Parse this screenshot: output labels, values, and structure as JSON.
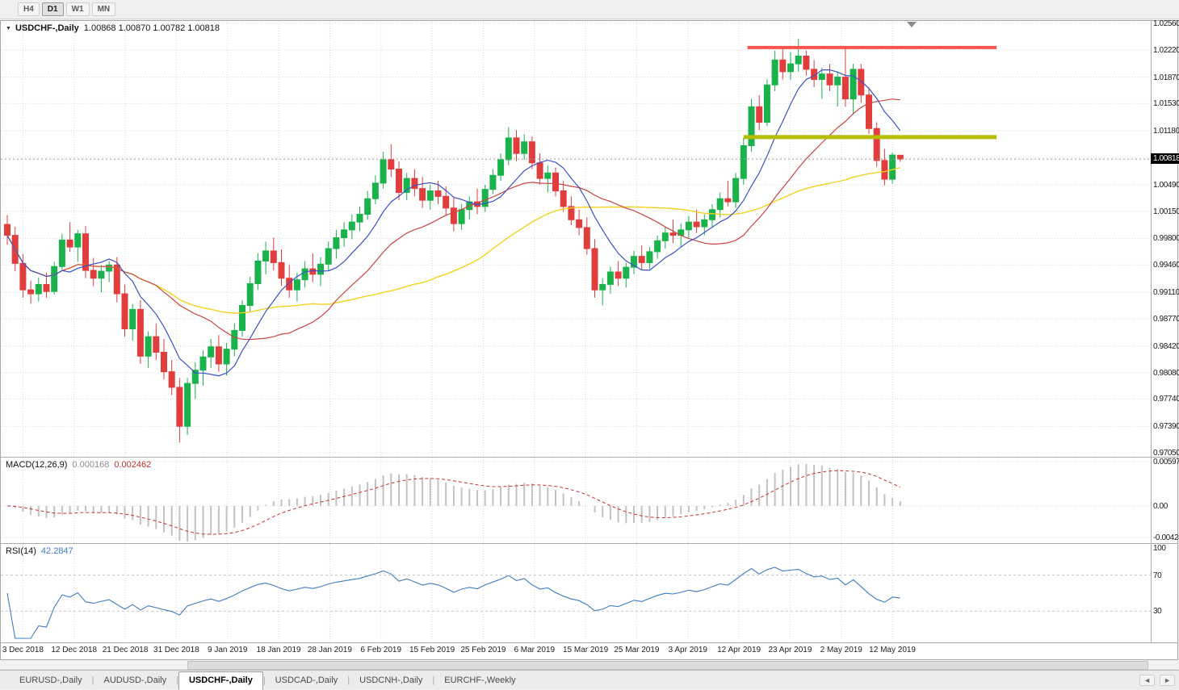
{
  "toolbar": {
    "timeframes": [
      {
        "label": "H4",
        "active": false
      },
      {
        "label": "D1",
        "active": true
      },
      {
        "label": "W1",
        "active": false
      },
      {
        "label": "MN",
        "active": false
      }
    ]
  },
  "chart": {
    "symbol_title": "USDCHF-,Daily",
    "ohlc": "1.00868 1.00870 1.00782 1.00818"
  },
  "macd": {
    "label": "MACD(12,26,9)",
    "value_main": "0.000168",
    "value_signal": "0.002462",
    "axis": [
      "0.00597",
      "0.00",
      "-0.00424"
    ]
  },
  "rsi": {
    "label": "RSI(14)",
    "value": "42.2847",
    "axis": [
      "100",
      "70",
      "30"
    ]
  },
  "price_axis": {
    "current": "1.00818",
    "labels": [
      "1.02560",
      "1.02220",
      "1.01870",
      "1.01530",
      "1.01180",
      "1.00490",
      "1.00150",
      "0.99800",
      "0.99460",
      "0.99110",
      "0.98770",
      "0.98420",
      "0.98080",
      "0.97740",
      "0.97390",
      "0.97050"
    ],
    "gridlines": [
      1.0256,
      1.0222,
      1.0187,
      1.0153,
      1.0118,
      1.0084,
      1.0049,
      1.0015,
      0.998,
      0.9946,
      0.9911,
      0.9877,
      0.9842,
      0.9808,
      0.9774,
      0.9739,
      0.9705
    ]
  },
  "date_axis": [
    "3 Dec 2018",
    "12 Dec 2018",
    "21 Dec 2018",
    "31 Dec 2018",
    "9 Jan 2019",
    "18 Jan 2019",
    "28 Jan 2019",
    "6 Feb 2019",
    "15 Feb 2019",
    "25 Feb 2019",
    "6 Mar 2019",
    "15 Mar 2019",
    "25 Mar 2019",
    "3 Apr 2019",
    "12 Apr 2019",
    "23 Apr 2019",
    "2 May 2019",
    "12 May 2019"
  ],
  "tabs": [
    {
      "label": "EURUSD-,Daily",
      "active": false
    },
    {
      "label": "AUDUSD-,Daily",
      "active": false
    },
    {
      "label": "USDCHF-,Daily",
      "active": true
    },
    {
      "label": "USDCAD-,Daily",
      "active": false
    },
    {
      "label": "USDCNH-,Daily",
      "active": false
    },
    {
      "label": "EURCHF-,Weekly",
      "active": false
    }
  ],
  "tab_arrows": {
    "left": "◄",
    "right": "►"
  },
  "chart_data": {
    "type": "candlestick",
    "symbol": "USDCHF",
    "timeframe": "Daily",
    "y_range": [
      0.96999,
      1.0259
    ],
    "colors": {
      "up": "#19b24b",
      "down": "#e23d3d",
      "ma_fast": "#3c52c4",
      "ma_mid": "#cc4444",
      "ma_slow": "#f2d21f",
      "macd_hist": "#c2c2c2",
      "macd_signal": "#cc2f2f",
      "rsi": "#3f7cc0",
      "grid": "#dadada",
      "current_price_line": "#999999"
    },
    "ma_periods": {
      "fast": 8,
      "mid": 20,
      "slow": 40
    },
    "lines": [
      {
        "name": "resistance",
        "price": 1.0225,
        "bar_start": 94.5,
        "bar_end": 126.3,
        "width": 4,
        "color": "#f8544e"
      },
      {
        "name": "support",
        "price": 1.011,
        "bar_start": 94.0,
        "bar_end": 126.3,
        "width": 5,
        "color": "#b4bd00"
      }
    ],
    "macd": {
      "params": [
        12,
        26,
        9
      ],
      "y_range": [
        -0.005,
        0.0065
      ]
    },
    "rsi": {
      "period": 14,
      "levels": [
        30,
        70
      ],
      "y_range": [
        0,
        100
      ]
    },
    "candles": [
      [
        0.9998,
        1.001,
        0.9972,
        0.9984
      ],
      [
        0.9984,
        0.9995,
        0.9938,
        0.9948
      ],
      [
        0.9948,
        0.996,
        0.9904,
        0.9914
      ],
      [
        0.9914,
        0.9926,
        0.9896,
        0.9909
      ],
      [
        0.9909,
        0.993,
        0.9899,
        0.9921
      ],
      [
        0.9921,
        0.9936,
        0.9904,
        0.9912
      ],
      [
        0.9912,
        0.995,
        0.9908,
        0.9944
      ],
      [
        0.9944,
        0.9986,
        0.994,
        0.9978
      ],
      [
        0.9978,
        1.0001,
        0.9963,
        0.9969
      ],
      [
        0.9969,
        0.9991,
        0.995,
        0.9986
      ],
      [
        0.9986,
        0.9996,
        0.9929,
        0.9939
      ],
      [
        0.9939,
        0.9955,
        0.9919,
        0.9929
      ],
      [
        0.9929,
        0.9946,
        0.9911,
        0.9938
      ],
      [
        0.9938,
        0.9951,
        0.9924,
        0.9946
      ],
      [
        0.9946,
        0.9956,
        0.9898,
        0.9909
      ],
      [
        0.9909,
        0.9921,
        0.9854,
        0.9864
      ],
      [
        0.9864,
        0.9896,
        0.9849,
        0.9889
      ],
      [
        0.9889,
        0.9901,
        0.9819,
        0.9829
      ],
      [
        0.9829,
        0.9861,
        0.9814,
        0.9854
      ],
      [
        0.9854,
        0.9871,
        0.9824,
        0.9834
      ],
      [
        0.9834,
        0.9851,
        0.9799,
        0.9809
      ],
      [
        0.9809,
        0.9824,
        0.9779,
        0.9789
      ],
      [
        0.9789,
        0.9801,
        0.9718,
        0.9739
      ],
      [
        0.9739,
        0.9801,
        0.9728,
        0.9794
      ],
      [
        0.9794,
        0.9821,
        0.9774,
        0.9811
      ],
      [
        0.9811,
        0.9836,
        0.9791,
        0.9828
      ],
      [
        0.9828,
        0.9851,
        0.9814,
        0.9841
      ],
      [
        0.9841,
        0.9856,
        0.9809,
        0.9819
      ],
      [
        0.9819,
        0.9846,
        0.9804,
        0.9838
      ],
      [
        0.9838,
        0.9871,
        0.9829,
        0.9862
      ],
      [
        0.9862,
        0.9901,
        0.9854,
        0.9894
      ],
      [
        0.9894,
        0.9931,
        0.9886,
        0.9922
      ],
      [
        0.9922,
        0.9961,
        0.9914,
        0.9951
      ],
      [
        0.9951,
        0.9976,
        0.9934,
        0.9964
      ],
      [
        0.9964,
        0.9981,
        0.9939,
        0.9949
      ],
      [
        0.9949,
        0.9966,
        0.9919,
        0.9929
      ],
      [
        0.9929,
        0.9946,
        0.9904,
        0.9914
      ],
      [
        0.9914,
        0.9936,
        0.9899,
        0.9927
      ],
      [
        0.9927,
        0.9951,
        0.9917,
        0.9941
      ],
      [
        0.9941,
        0.9961,
        0.9924,
        0.9934
      ],
      [
        0.9934,
        0.9956,
        0.9919,
        0.9947
      ],
      [
        0.9947,
        0.9976,
        0.9939,
        0.9967
      ],
      [
        0.9967,
        0.9991,
        0.9954,
        0.9981
      ],
      [
        0.9981,
        1.0001,
        0.9969,
        0.9991
      ],
      [
        0.9991,
        1.0011,
        0.9979,
        1.0001
      ],
      [
        1.0001,
        1.0021,
        0.9989,
        1.0011
      ],
      [
        1.0011,
        1.0041,
        1.0004,
        1.0031
      ],
      [
        1.0031,
        1.0061,
        1.0024,
        1.0051
      ],
      [
        1.0051,
        1.0091,
        1.0044,
        1.0081
      ],
      [
        1.0081,
        1.0101,
        1.0059,
        1.0069
      ],
      [
        1.0069,
        1.0079,
        1.0029,
        1.0039
      ],
      [
        1.0039,
        1.0064,
        1.0029,
        1.0057
      ],
      [
        1.0057,
        1.0069,
        1.0034,
        1.0044
      ],
      [
        1.0044,
        1.0059,
        1.0019,
        1.0029
      ],
      [
        1.0029,
        1.0049,
        1.0017,
        1.0041
      ],
      [
        1.0041,
        1.0054,
        1.0024,
        1.0034
      ],
      [
        1.0034,
        1.0047,
        1.0009,
        1.0019
      ],
      [
        1.0019,
        1.0034,
        0.9989,
        0.9999
      ],
      [
        0.9999,
        1.0024,
        0.9991,
        1.0017
      ],
      [
        1.0017,
        1.0034,
        1.0004,
        1.0027
      ],
      [
        1.0027,
        1.0044,
        1.0011,
        1.0021
      ],
      [
        1.0021,
        1.0049,
        1.0014,
        1.0043
      ],
      [
        1.0043,
        1.0069,
        1.0037,
        1.0061
      ],
      [
        1.0061,
        1.0089,
        1.0054,
        1.0081
      ],
      [
        1.0081,
        1.0123,
        1.0074,
        1.0109
      ],
      [
        1.0109,
        1.0119,
        1.0079,
        1.0089
      ],
      [
        1.0089,
        1.0114,
        1.0081,
        1.0104
      ],
      [
        1.0104,
        1.0111,
        1.0069,
        1.0077
      ],
      [
        1.0077,
        1.0089,
        1.0049,
        1.0057
      ],
      [
        1.0057,
        1.0074,
        1.0039,
        1.0064
      ],
      [
        1.0064,
        1.0071,
        1.0034,
        1.0041
      ],
      [
        1.0041,
        1.0054,
        1.0014,
        1.0021
      ],
      [
        1.0021,
        1.0034,
        0.9997,
        1.0004
      ],
      [
        1.0004,
        1.0017,
        0.9984,
        0.9994
      ],
      [
        0.9994,
        1.0007,
        0.9959,
        0.9967
      ],
      [
        0.9967,
        0.9979,
        0.9904,
        0.9914
      ],
      [
        0.9914,
        0.9929,
        0.9894,
        0.9921
      ],
      [
        0.9921,
        0.9944,
        0.9909,
        0.9937
      ],
      [
        0.9937,
        0.9951,
        0.9919,
        0.9929
      ],
      [
        0.9929,
        0.9949,
        0.9917,
        0.9943
      ],
      [
        0.9943,
        0.9964,
        0.9934,
        0.9957
      ],
      [
        0.9957,
        0.9971,
        0.9939,
        0.9949
      ],
      [
        0.9949,
        0.9969,
        0.9941,
        0.9963
      ],
      [
        0.9963,
        0.9984,
        0.9954,
        0.9977
      ],
      [
        0.9977,
        0.9994,
        0.9967,
        0.9987
      ],
      [
        0.9987,
        1.0004,
        0.9974,
        0.9984
      ],
      [
        0.9984,
        0.9999,
        0.9969,
        0.9991
      ],
      [
        0.9991,
        1.0009,
        0.9981,
        1.0001
      ],
      [
        1.0001,
        1.0017,
        0.9987,
        0.9995
      ],
      [
        0.9995,
        1.0011,
        0.9984,
        1.0004
      ],
      [
        1.0004,
        1.0024,
        0.9994,
        1.0017
      ],
      [
        1.0017,
        1.0039,
        1.0007,
        1.0031
      ],
      [
        1.0031,
        1.0054,
        1.0021,
        1.0027
      ],
      [
        1.0027,
        1.0064,
        1.0019,
        1.0057
      ],
      [
        1.0057,
        1.0109,
        1.0049,
        1.0099
      ],
      [
        1.0099,
        1.0159,
        1.0091,
        1.0149
      ],
      [
        1.0149,
        1.0164,
        1.0119,
        1.0129
      ],
      [
        1.0129,
        1.0184,
        1.0124,
        1.0177
      ],
      [
        1.0177,
        1.0221,
        1.0169,
        1.0209
      ],
      [
        1.0209,
        1.0225,
        1.0184,
        1.0194
      ],
      [
        1.0194,
        1.0219,
        1.0184,
        1.0204
      ],
      [
        1.0204,
        1.0236,
        1.0194,
        1.0214
      ],
      [
        1.0214,
        1.0221,
        1.0189,
        1.0197
      ],
      [
        1.0197,
        1.0209,
        1.0174,
        1.0184
      ],
      [
        1.0184,
        1.0199,
        1.0159,
        1.0191
      ],
      [
        1.0191,
        1.0204,
        1.0169,
        1.0177
      ],
      [
        1.0177,
        1.0194,
        1.0149,
        1.0187
      ],
      [
        1.0187,
        1.0224,
        1.0149,
        1.0159
      ],
      [
        1.0159,
        1.0204,
        1.0139,
        1.0197
      ],
      [
        1.0197,
        1.0204,
        1.0154,
        1.0164
      ],
      [
        1.0164,
        1.0174,
        1.0114,
        1.0121
      ],
      [
        1.0121,
        1.0129,
        1.0072,
        1.008
      ],
      [
        1.008,
        1.0095,
        1.0048,
        1.0056
      ],
      [
        1.0056,
        1.009,
        1.005,
        1.0087
      ],
      [
        1.00868,
        1.0087,
        1.00782,
        1.00818
      ]
    ]
  }
}
